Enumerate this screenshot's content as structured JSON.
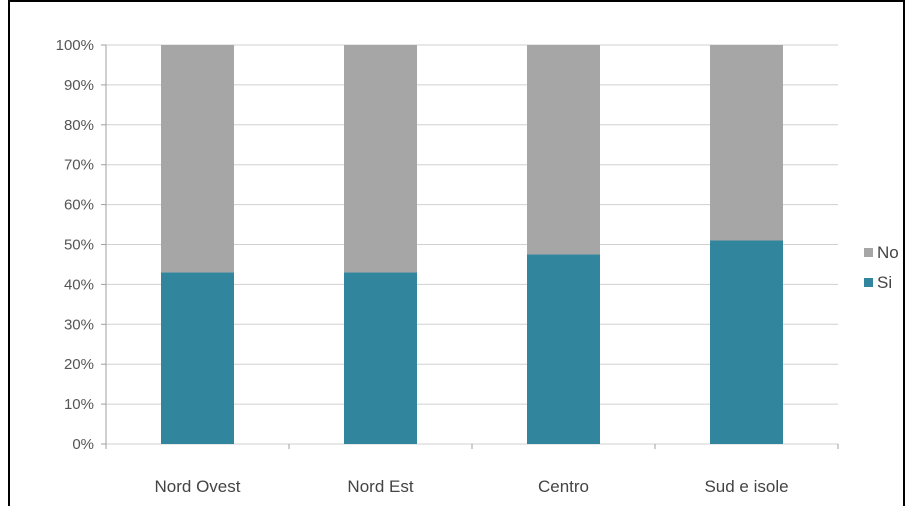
{
  "chart_data": {
    "type": "bar",
    "stacked": true,
    "percent": true,
    "title": "",
    "categories": [
      "Nord Ovest",
      "Nord Est",
      "Centro",
      "Sud e isole"
    ],
    "series": [
      {
        "name": "Si",
        "values": [
          43,
          43,
          47.5,
          51
        ],
        "color": "#31859c"
      },
      {
        "name": "No",
        "values": [
          57,
          57,
          52.5,
          49
        ],
        "color": "#a6a6a6"
      }
    ],
    "yticks": [
      "0%",
      "10%",
      "20%",
      "30%",
      "40%",
      "50%",
      "60%",
      "70%",
      "80%",
      "90%",
      "100%"
    ],
    "ylim": [
      0,
      100
    ],
    "grid": true,
    "legend": {
      "position": "right",
      "order": [
        "No",
        "Si"
      ]
    }
  }
}
